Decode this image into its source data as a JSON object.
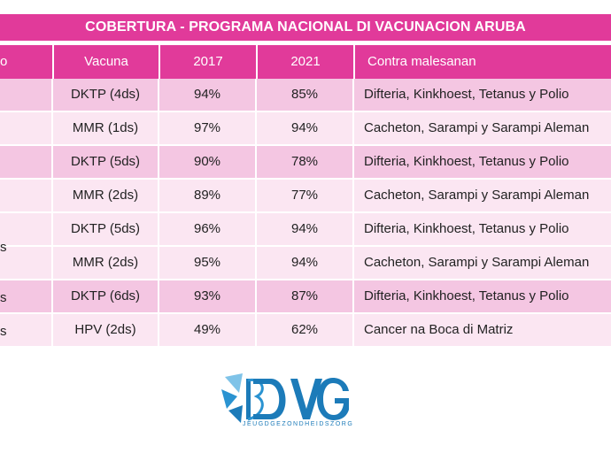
{
  "title": "COBERTURA - PROGRAMA NACIONAL DI VACUNACION ARUBA",
  "table": {
    "headers": [
      "o",
      "Vacuna",
      "2017",
      "2021",
      "Contra malesanan"
    ],
    "rows": [
      {
        "vacuna": "DKTP (4ds)",
        "y2017": "94%",
        "y2021": "85%",
        "contra": "Difteria, Kinkhoest, Tetanus y Polio"
      },
      {
        "vacuna": "MMR (1ds)",
        "y2017": "97%",
        "y2021": "94%",
        "contra": "Cacheton, Sarampi y Sarampi Aleman"
      },
      {
        "vacuna": "DKTP (5ds)",
        "y2017": "90%",
        "y2021": "78%",
        "contra": "Difteria, Kinkhoest, Tetanus y Polio"
      },
      {
        "vacuna": "MMR (2ds)",
        "y2017": "89%",
        "y2021": "77%",
        "contra": "Cacheton, Sarampi y Sarampi Aleman"
      },
      {
        "vacuna": "DKTP (5ds)",
        "y2017": "96%",
        "y2021": "94%",
        "contra": "Difteria, Kinkhoest, Tetanus y Polio"
      },
      {
        "vacuna": "MMR (2ds)",
        "y2017": "95%",
        "y2021": "94%",
        "contra": "Cacheton, Sarampi y Sarampi Aleman"
      },
      {
        "vacuna": "DKTP (6ds)",
        "y2017": "93%",
        "y2021": "87%",
        "contra": "Difteria, Kinkhoest, Tetanus y Polio"
      },
      {
        "vacuna": "HPV (2ds)",
        "y2017": "49%",
        "y2021": "62%",
        "contra": "Cancer na Boca di Matriz"
      }
    ],
    "group_labels": [
      "s",
      "s",
      "s"
    ]
  },
  "logo": {
    "text": "DVG",
    "tagline": "JEUGDGEZONDHEIDSZORG"
  },
  "colors": {
    "header": "#e13a9a",
    "row_dark": "#f4c6e2",
    "row_light": "#fbe6f2",
    "logo_blue": "#1c7bb9"
  }
}
